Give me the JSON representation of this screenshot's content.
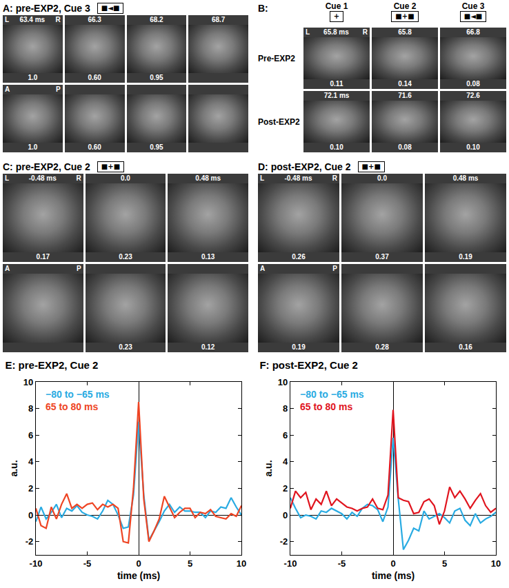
{
  "chart_data": [
    {
      "type": "line",
      "title": "E: pre-EXP2, Cue 2",
      "x_label": "time (ms)",
      "y_label": "a.u.",
      "x": [
        -10,
        -9.5,
        -9,
        -8.5,
        -8,
        -7.5,
        -7,
        -6.5,
        -6,
        -5.5,
        -5,
        -4.5,
        -4,
        -3.5,
        -3,
        -2.5,
        -2,
        -1.5,
        -1,
        -0.5,
        0,
        0.5,
        1,
        1.5,
        2,
        2.5,
        3,
        3.5,
        4,
        4.5,
        5,
        5.5,
        6,
        6.5,
        7,
        7.5,
        8,
        8.5,
        9,
        9.5,
        10
      ],
      "series": [
        {
          "name": "−80 to −65 ms",
          "color": "#29abe2",
          "values": [
            -0.5,
            0.6,
            -0.3,
            0.2,
            0.8,
            -0.2,
            0.5,
            0.3,
            0.7,
            0.2,
            0,
            -0.1,
            -0.3,
            0.3,
            1.1,
            0.8,
            0,
            -1,
            -0.9,
            1.5,
            7,
            1.5,
            -1.9,
            -1.2,
            -0.5,
            0.3,
            0.8,
            0.2,
            0.6,
            0.3,
            0.3,
            0.2,
            0.2,
            -0.2,
            0.3,
            0.2,
            0.6,
            0.5,
            1.3,
            0.6,
            0
          ]
        },
        {
          "name": "65 to 80 ms",
          "color": "#ee4423",
          "values": [
            0.5,
            -0.8,
            -1,
            0.6,
            -0.3,
            0.8,
            1.6,
            0.5,
            0.8,
            0.5,
            0.8,
            0.9,
            0.4,
            0.8,
            0.6,
            0.8,
            0.5,
            -2,
            -2.1,
            2,
            8.5,
            1.2,
            -2,
            -1.2,
            -0.3,
            1.4,
            0.6,
            -0.2,
            0.2,
            0.5,
            0.5,
            -0.2,
            0.2,
            0.1,
            0.4,
            -0.1,
            -0.2,
            -0.3,
            0.1,
            -0.1,
            0.7
          ]
        }
      ],
      "xlim": [
        -10,
        10
      ],
      "xticks": [
        -10,
        -5,
        0,
        5,
        10
      ],
      "ylim": [
        -3,
        10
      ],
      "yticks": [
        -2,
        0,
        2,
        4,
        6,
        8,
        10
      ]
    },
    {
      "type": "line",
      "title": "F: post-EXP2, Cue 2",
      "x_label": "time (ms)",
      "y_label": "a.u.",
      "x": [
        -10,
        -9.5,
        -9,
        -8.5,
        -8,
        -7.5,
        -7,
        -6.5,
        -6,
        -5.5,
        -5,
        -4.5,
        -4,
        -3.5,
        -3,
        -2.5,
        -2,
        -1.5,
        -1,
        -0.5,
        0,
        0.5,
        1,
        1.5,
        2,
        2.5,
        3,
        3.5,
        4,
        4.5,
        5,
        5.5,
        6,
        6.5,
        7,
        7.5,
        8,
        8.5,
        9,
        9.5,
        10
      ],
      "series": [
        {
          "name": "−80 to −65 ms",
          "color": "#29abe2",
          "values": [
            1.3,
            0.5,
            -0.2,
            0,
            -0.1,
            -0.3,
            0.3,
            0.2,
            0.5,
            0.3,
            0.1,
            -0.3,
            0.2,
            -0.1,
            0.5,
            0.8,
            0.7,
            0.4,
            -0.5,
            0.6,
            5.8,
            1.2,
            -2.6,
            -1.9,
            -1,
            -1.2,
            0.3,
            -0.3,
            -0.1,
            0.1,
            -0.2,
            -0.6,
            0.3,
            0.5,
            -0.4,
            -0.8,
            0.1,
            -0.6,
            -0.3,
            -0.1,
            0.2
          ]
        },
        {
          "name": "65 to 80 ms",
          "color": "#e0141e",
          "values": [
            0.5,
            1.8,
            1.3,
            1.7,
            0.4,
            1.2,
            0.8,
            1.8,
            0.7,
            1.2,
            0.9,
            0.6,
            0.5,
            0.3,
            0.5,
            0.6,
            1.2,
            0.5,
            0.4,
            1.5,
            7.9,
            1.3,
            1.1,
            1,
            0.1,
            0.2,
            1,
            1.2,
            0.7,
            -0.7,
            0.3,
            2.1,
            1.3,
            1.8,
            1.2,
            0.5,
            1.1,
            1.6,
            0.7,
            0.2,
            0.5
          ]
        }
      ],
      "xlim": [
        -10,
        10
      ],
      "xticks": [
        -10,
        -5,
        0,
        5,
        10
      ],
      "ylim": [
        -3,
        10
      ],
      "yticks": [
        -2,
        0,
        2,
        4,
        6,
        8,
        10
      ]
    }
  ],
  "image_panels": [
    {
      "title": "A: pre-EXP2, Cue 3",
      "icon": "■◄■",
      "rows": [
        {
          "header": [
            [
              "L",
              "63.4 ms",
              "R"
            ],
            "66.3",
            "68.2",
            "68.7"
          ],
          "footer": [
            "1.0",
            "0.60",
            "0.95",
            null
          ]
        },
        {
          "header": [
            [
              "A",
              "P"
            ],
            null,
            null,
            null
          ],
          "footer": [
            "1.0",
            "0.60",
            "0.95",
            null
          ]
        }
      ]
    },
    {
      "title": "B:",
      "columns": [
        {
          "label": "Cue 1",
          "icon": "+"
        },
        {
          "label": "Cue 2",
          "icon": "■+■"
        },
        {
          "label": "Cue 3",
          "icon": "■◄■"
        }
      ],
      "rows": [
        {
          "label": "Pre-EXP2",
          "header": [
            [
              "L",
              "65.8 ms",
              "R"
            ],
            "65.8",
            "66.8"
          ],
          "footer": [
            "0.11",
            "0.14",
            "0.08"
          ]
        },
        {
          "label": "Post-EXP2",
          "header": [
            "72.1 ms",
            "71.6",
            "72.6"
          ],
          "footer": [
            "0.10",
            "0.08",
            "0.10"
          ]
        }
      ]
    },
    {
      "title": "C: pre-EXP2, Cue 2",
      "icon": "■+■",
      "rows": [
        {
          "header": [
            [
              "L",
              "-0.48 ms",
              "R"
            ],
            "0.0",
            "0.48 ms"
          ],
          "footer": [
            "0.17",
            "0.23",
            "0.13"
          ]
        },
        {
          "header": [
            [
              "A",
              "P"
            ],
            null,
            null
          ],
          "footer": [
            null,
            "0.23",
            "0.12"
          ]
        }
      ]
    },
    {
      "title": "D: post-EXP2, Cue 2",
      "icon": "■+■",
      "rows": [
        {
          "header": [
            [
              "L",
              "-0.48 ms",
              "R"
            ],
            "0.0",
            "0.48 ms"
          ],
          "footer": [
            "0.26",
            "0.37",
            "0.19"
          ]
        },
        {
          "header": [
            [
              "A",
              "P"
            ],
            null,
            null
          ],
          "footer": [
            "0.19",
            "0.28",
            "0.16"
          ]
        }
      ]
    }
  ]
}
